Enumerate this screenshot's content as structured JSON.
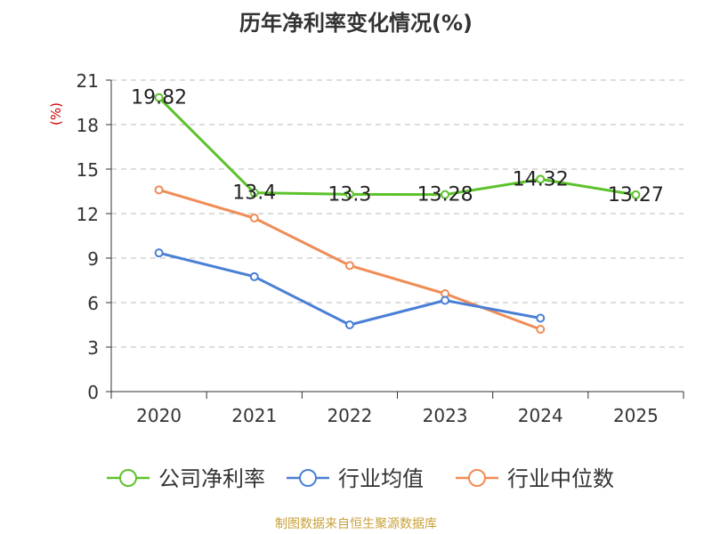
{
  "chart_data": {
    "type": "line",
    "title": "历年净利率变化情况(%)",
    "ylabel": "(%)",
    "xlabel": "",
    "categories": [
      "2020",
      "2021",
      "2022",
      "2023",
      "2024",
      "2025"
    ],
    "ylim": [
      0,
      21
    ],
    "yticks": [
      0,
      3,
      6,
      9,
      12,
      15,
      18,
      21
    ],
    "grid": true,
    "legend_position": "bottom",
    "series": [
      {
        "name": "公司净利率",
        "color": "#5cc22b",
        "values": [
          19.82,
          13.4,
          13.3,
          13.28,
          14.32,
          13.27
        ],
        "labels": [
          "19.82",
          "13.4",
          "13.3",
          "13.28",
          "14.32",
          "13.27"
        ]
      },
      {
        "name": "行业均值",
        "color": "#4a7fd6",
        "values": [
          9.35,
          7.75,
          4.5,
          6.15,
          4.95,
          null
        ],
        "labels": []
      },
      {
        "name": "行业中位数",
        "color": "#f08c55",
        "values": [
          13.6,
          11.7,
          8.5,
          6.6,
          4.2,
          null
        ],
        "labels": []
      }
    ]
  },
  "source_note": "制图数据来自恒生聚源数据库",
  "colors": {
    "axis": "#333333",
    "grid": "#bbbbbb",
    "ylabel": "#cc0000"
  }
}
